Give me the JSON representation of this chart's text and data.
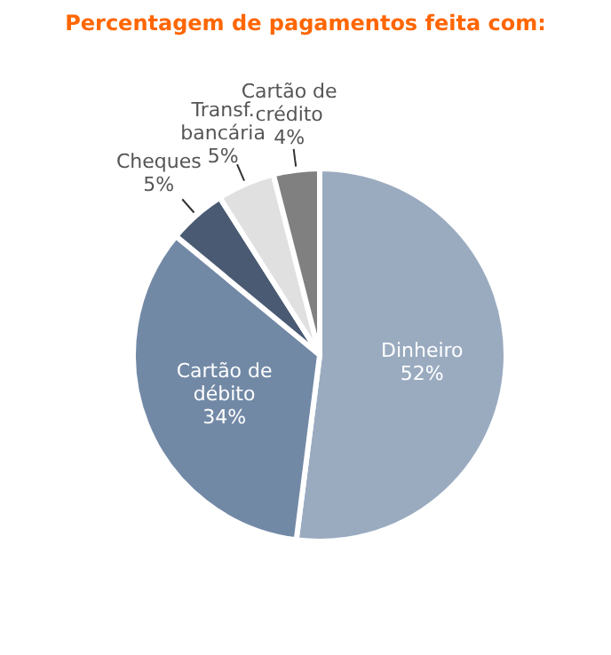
{
  "chart_data": {
    "type": "pie",
    "title": "Percentagem de pagamentos feita com:",
    "categories": [
      "Dinheiro",
      "Cartão de débito",
      "Cheques",
      "Transf. bancária",
      "Cartão de crédito"
    ],
    "values": [
      52,
      34,
      5,
      5,
      4
    ],
    "value_labels": [
      "52%",
      "34%",
      "5%",
      "5%",
      "4%"
    ],
    "colors": [
      "#9aabc0",
      "#7289a6",
      "#4a5a73",
      "#e0e0e0",
      "#808080"
    ]
  }
}
